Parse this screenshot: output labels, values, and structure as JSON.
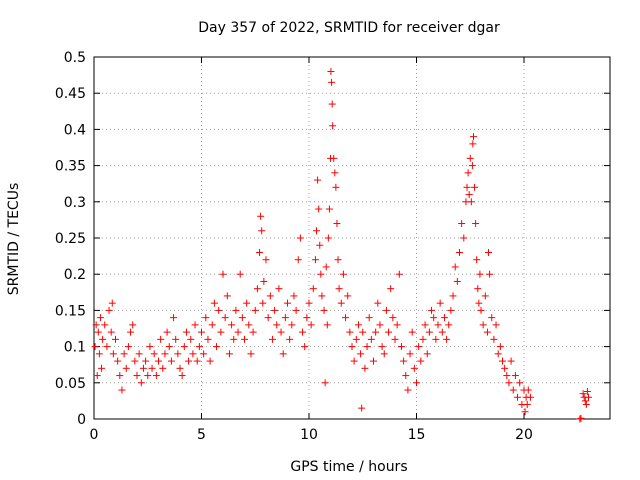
{
  "chart_data": {
    "type": "scatter",
    "title": "Day 357 of 2022, SRMTID for receiver dgar",
    "xlabel": "GPS time / hours",
    "ylabel": "SRMTID / TECUs",
    "xlim": [
      0,
      24
    ],
    "ylim": [
      0,
      0.5
    ],
    "xticks": [
      0,
      5,
      10,
      15,
      20
    ],
    "xtick_labels": [
      "0",
      "5",
      "10",
      "15",
      "20"
    ],
    "yticks": [
      0,
      0.05,
      0.1,
      0.15,
      0.2,
      0.25,
      0.3,
      0.35,
      0.4,
      0.45,
      0.5
    ],
    "ytick_labels": [
      "0",
      "0.05",
      "0.1",
      "0.15",
      "0.2",
      "0.25",
      "0.3",
      "0.35",
      "0.4",
      "0.45",
      "0.5"
    ],
    "grid": true,
    "legend": "none",
    "marker": "+",
    "marker_color": "#ff0000",
    "series": [
      {
        "name": "SRMTID",
        "points": [
          [
            0.05,
            0.1
          ],
          [
            0.1,
            0.13
          ],
          [
            0.15,
            0.06
          ],
          [
            0.2,
            0.12
          ],
          [
            0.25,
            0.09
          ],
          [
            0.3,
            0.14
          ],
          [
            0.35,
            0.07
          ],
          [
            0.4,
            0.11
          ],
          [
            0.5,
            0.13
          ],
          [
            0.6,
            0.1
          ],
          [
            0.7,
            0.15
          ],
          [
            0.8,
            0.12
          ],
          [
            0.85,
            0.16
          ],
          [
            0.9,
            0.09
          ],
          [
            1.0,
            0.11
          ],
          [
            1.1,
            0.08
          ],
          [
            1.2,
            0.06
          ],
          [
            1.3,
            0.04
          ],
          [
            1.4,
            0.09
          ],
          [
            1.5,
            0.07
          ],
          [
            1.6,
            0.1
          ],
          [
            1.7,
            0.12
          ],
          [
            1.8,
            0.13
          ],
          [
            1.9,
            0.08
          ],
          [
            2.0,
            0.06
          ],
          [
            2.1,
            0.09
          ],
          [
            2.2,
            0.05
          ],
          [
            2.3,
            0.07
          ],
          [
            2.4,
            0.08
          ],
          [
            2.5,
            0.06
          ],
          [
            2.6,
            0.1
          ],
          [
            2.7,
            0.07
          ],
          [
            2.8,
            0.09
          ],
          [
            2.9,
            0.06
          ],
          [
            3.0,
            0.08
          ],
          [
            3.1,
            0.11
          ],
          [
            3.2,
            0.07
          ],
          [
            3.3,
            0.09
          ],
          [
            3.4,
            0.12
          ],
          [
            3.5,
            0.1
          ],
          [
            3.6,
            0.08
          ],
          [
            3.7,
            0.14
          ],
          [
            3.8,
            0.11
          ],
          [
            3.9,
            0.09
          ],
          [
            4.0,
            0.07
          ],
          [
            4.1,
            0.06
          ],
          [
            4.2,
            0.1
          ],
          [
            4.3,
            0.12
          ],
          [
            4.4,
            0.08
          ],
          [
            4.5,
            0.11
          ],
          [
            4.6,
            0.09
          ],
          [
            4.7,
            0.13
          ],
          [
            4.8,
            0.08
          ],
          [
            4.9,
            0.1
          ],
          [
            5.0,
            0.12
          ],
          [
            5.1,
            0.09
          ],
          [
            5.2,
            0.14
          ],
          [
            5.3,
            0.11
          ],
          [
            5.4,
            0.08
          ],
          [
            5.5,
            0.13
          ],
          [
            5.6,
            0.16
          ],
          [
            5.7,
            0.1
          ],
          [
            5.8,
            0.15
          ],
          [
            5.9,
            0.12
          ],
          [
            6.0,
            0.2
          ],
          [
            6.1,
            0.14
          ],
          [
            6.2,
            0.17
          ],
          [
            6.3,
            0.09
          ],
          [
            6.4,
            0.13
          ],
          [
            6.5,
            0.11
          ],
          [
            6.6,
            0.15
          ],
          [
            6.7,
            0.12
          ],
          [
            6.8,
            0.2
          ],
          [
            6.9,
            0.14
          ],
          [
            7.0,
            0.11
          ],
          [
            7.1,
            0.16
          ],
          [
            7.2,
            0.13
          ],
          [
            7.3,
            0.09
          ],
          [
            7.4,
            0.12
          ],
          [
            7.5,
            0.15
          ],
          [
            7.6,
            0.18
          ],
          [
            7.7,
            0.23
          ],
          [
            7.75,
            0.28
          ],
          [
            7.8,
            0.26
          ],
          [
            7.85,
            0.16
          ],
          [
            7.9,
            0.19
          ],
          [
            8.0,
            0.22
          ],
          [
            8.1,
            0.14
          ],
          [
            8.2,
            0.17
          ],
          [
            8.3,
            0.11
          ],
          [
            8.4,
            0.15
          ],
          [
            8.5,
            0.13
          ],
          [
            8.6,
            0.18
          ],
          [
            8.7,
            0.12
          ],
          [
            8.8,
            0.09
          ],
          [
            8.9,
            0.14
          ],
          [
            9.0,
            0.16
          ],
          [
            9.1,
            0.11
          ],
          [
            9.2,
            0.13
          ],
          [
            9.3,
            0.17
          ],
          [
            9.4,
            0.15
          ],
          [
            9.5,
            0.22
          ],
          [
            9.6,
            0.25
          ],
          [
            9.7,
            0.12
          ],
          [
            9.8,
            0.1
          ],
          [
            9.9,
            0.14
          ],
          [
            10.0,
            0.16
          ],
          [
            10.1,
            0.13
          ],
          [
            10.2,
            0.18
          ],
          [
            10.3,
            0.22
          ],
          [
            10.35,
            0.26
          ],
          [
            10.4,
            0.33
          ],
          [
            10.45,
            0.29
          ],
          [
            10.5,
            0.24
          ],
          [
            10.55,
            0.2
          ],
          [
            10.6,
            0.17
          ],
          [
            10.7,
            0.15
          ],
          [
            10.75,
            0.05
          ],
          [
            10.8,
            0.21
          ],
          [
            10.85,
            0.13
          ],
          [
            10.9,
            0.25
          ],
          [
            10.95,
            0.29
          ],
          [
            11.0,
            0.36
          ],
          [
            11.02,
            0.48
          ],
          [
            11.05,
            0.465
          ],
          [
            11.08,
            0.435
          ],
          [
            11.1,
            0.405
          ],
          [
            11.15,
            0.36
          ],
          [
            11.2,
            0.34
          ],
          [
            11.25,
            0.32
          ],
          [
            11.3,
            0.27
          ],
          [
            11.35,
            0.22
          ],
          [
            11.4,
            0.18
          ],
          [
            11.5,
            0.16
          ],
          [
            11.6,
            0.2
          ],
          [
            11.7,
            0.14
          ],
          [
            11.8,
            0.17
          ],
          [
            11.9,
            0.12
          ],
          [
            12.0,
            0.1
          ],
          [
            12.1,
            0.08
          ],
          [
            12.2,
            0.11
          ],
          [
            12.3,
            0.13
          ],
          [
            12.4,
            0.09
          ],
          [
            12.45,
            0.015
          ],
          [
            12.5,
            0.12
          ],
          [
            12.6,
            0.07
          ],
          [
            12.7,
            0.1
          ],
          [
            12.8,
            0.14
          ],
          [
            12.9,
            0.11
          ],
          [
            13.0,
            0.08
          ],
          [
            13.1,
            0.12
          ],
          [
            13.2,
            0.16
          ],
          [
            13.3,
            0.13
          ],
          [
            13.4,
            0.1
          ],
          [
            13.5,
            0.09
          ],
          [
            13.6,
            0.15
          ],
          [
            13.7,
            0.12
          ],
          [
            13.8,
            0.18
          ],
          [
            13.9,
            0.14
          ],
          [
            14.0,
            0.11
          ],
          [
            14.1,
            0.13
          ],
          [
            14.2,
            0.2
          ],
          [
            14.3,
            0.1
          ],
          [
            14.4,
            0.08
          ],
          [
            14.5,
            0.06
          ],
          [
            14.6,
            0.04
          ],
          [
            14.7,
            0.09
          ],
          [
            14.8,
            0.12
          ],
          [
            14.9,
            0.07
          ],
          [
            15.0,
            0.05
          ],
          [
            15.1,
            0.1
          ],
          [
            15.2,
            0.08
          ],
          [
            15.3,
            0.11
          ],
          [
            15.4,
            0.13
          ],
          [
            15.5,
            0.09
          ],
          [
            15.6,
            0.12
          ],
          [
            15.7,
            0.15
          ],
          [
            15.8,
            0.14
          ],
          [
            15.9,
            0.11
          ],
          [
            16.0,
            0.13
          ],
          [
            16.1,
            0.16
          ],
          [
            16.2,
            0.12
          ],
          [
            16.3,
            0.14
          ],
          [
            16.4,
            0.11
          ],
          [
            16.5,
            0.13
          ],
          [
            16.6,
            0.15
          ],
          [
            16.7,
            0.17
          ],
          [
            16.8,
            0.21
          ],
          [
            16.9,
            0.19
          ],
          [
            17.0,
            0.23
          ],
          [
            17.1,
            0.27
          ],
          [
            17.2,
            0.25
          ],
          [
            17.3,
            0.3
          ],
          [
            17.35,
            0.32
          ],
          [
            17.4,
            0.34
          ],
          [
            17.45,
            0.31
          ],
          [
            17.5,
            0.36
          ],
          [
            17.55,
            0.3
          ],
          [
            17.6,
            0.35
          ],
          [
            17.62,
            0.38
          ],
          [
            17.65,
            0.39
          ],
          [
            17.7,
            0.32
          ],
          [
            17.75,
            0.27
          ],
          [
            17.8,
            0.22
          ],
          [
            17.85,
            0.18
          ],
          [
            17.9,
            0.16
          ],
          [
            17.95,
            0.2
          ],
          [
            18.0,
            0.15
          ],
          [
            18.1,
            0.13
          ],
          [
            18.2,
            0.17
          ],
          [
            18.3,
            0.12
          ],
          [
            18.35,
            0.23
          ],
          [
            18.4,
            0.2
          ],
          [
            18.5,
            0.14
          ],
          [
            18.6,
            0.11
          ],
          [
            18.7,
            0.13
          ],
          [
            18.8,
            0.09
          ],
          [
            18.9,
            0.1
          ],
          [
            19.0,
            0.08
          ],
          [
            19.1,
            0.07
          ],
          [
            19.2,
            0.06
          ],
          [
            19.3,
            0.05
          ],
          [
            19.4,
            0.08
          ],
          [
            19.5,
            0.04
          ],
          [
            19.6,
            0.06
          ],
          [
            19.7,
            0.03
          ],
          [
            19.8,
            0.05
          ],
          [
            19.9,
            0.02
          ],
          [
            20.0,
            0.04
          ],
          [
            20.05,
            0.01
          ],
          [
            20.1,
            0.03
          ],
          [
            20.15,
            0.02
          ],
          [
            20.2,
            0.04
          ],
          [
            20.3,
            0.03
          ],
          [
            22.6,
            0.0
          ],
          [
            22.65,
            0.001
          ],
          [
            22.75,
            0.035
          ],
          [
            22.8,
            0.03
          ],
          [
            22.85,
            0.025
          ],
          [
            22.9,
            0.02
          ],
          [
            22.95,
            0.038
          ],
          [
            23.0,
            0.03
          ]
        ]
      }
    ]
  }
}
